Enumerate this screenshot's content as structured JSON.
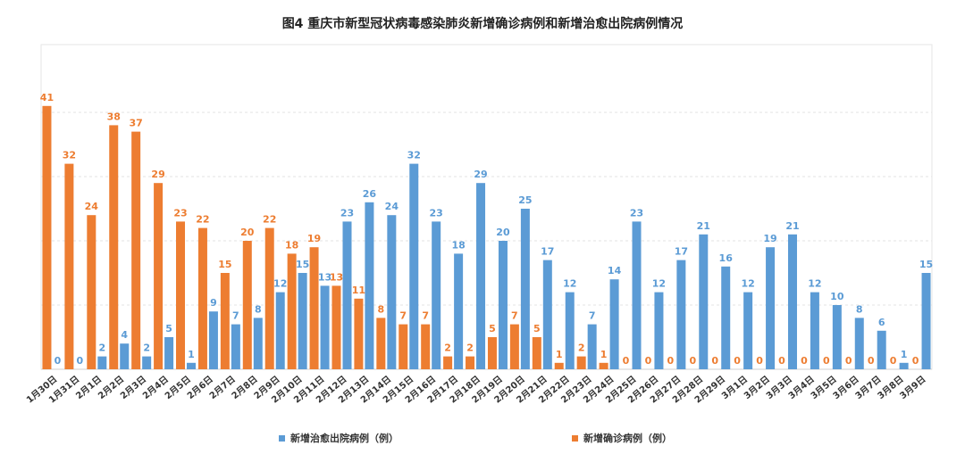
{
  "chart_data": {
    "type": "bar",
    "title": "图4    重庆市新型冠状病毒感染肺炎新增确诊病例和新增治愈出院病例情况",
    "categories": [
      "1月30日",
      "1月31日",
      "2月1日",
      "2月2日",
      "2月3日",
      "2月4日",
      "2月5日",
      "2月6日",
      "2月7日",
      "2月8日",
      "2月9日",
      "2月10日",
      "2月11日",
      "2月12日",
      "2月13日",
      "2月14日",
      "2月15日",
      "2月16日",
      "2月17日",
      "2月18日",
      "2月19日",
      "2月20日",
      "2月21日",
      "2月22日",
      "2月23日",
      "2月24日",
      "2月25日",
      "2月26日",
      "2月27日",
      "2月28日",
      "2月29日",
      "3月1日",
      "3月2日",
      "3月3日",
      "3月4日",
      "3月5日",
      "3月6日",
      "3月7日",
      "3月8日",
      "3月9日"
    ],
    "series": [
      {
        "name": "新增治愈出院病例（例）",
        "color": "#5b9bd5",
        "values": [
          0,
          0,
          2,
          4,
          2,
          5,
          1,
          9,
          7,
          8,
          12,
          15,
          13,
          23,
          26,
          24,
          32,
          23,
          18,
          29,
          20,
          25,
          17,
          12,
          7,
          14,
          23,
          12,
          17,
          21,
          16,
          12,
          19,
          21,
          12,
          10,
          8,
          6,
          1,
          15
        ]
      },
      {
        "name": "新增确诊病例（例）",
        "color": "#ed7d31",
        "values": [
          41,
          32,
          24,
          38,
          37,
          29,
          23,
          22,
          15,
          20,
          22,
          18,
          19,
          13,
          11,
          8,
          7,
          7,
          2,
          2,
          5,
          7,
          5,
          1,
          2,
          1,
          0,
          0,
          0,
          0,
          0,
          0,
          0,
          0,
          0,
          0,
          0,
          0,
          0,
          0
        ]
      }
    ],
    "ylim": [
      0,
      48
    ],
    "grid": true,
    "legend": "bottom"
  }
}
